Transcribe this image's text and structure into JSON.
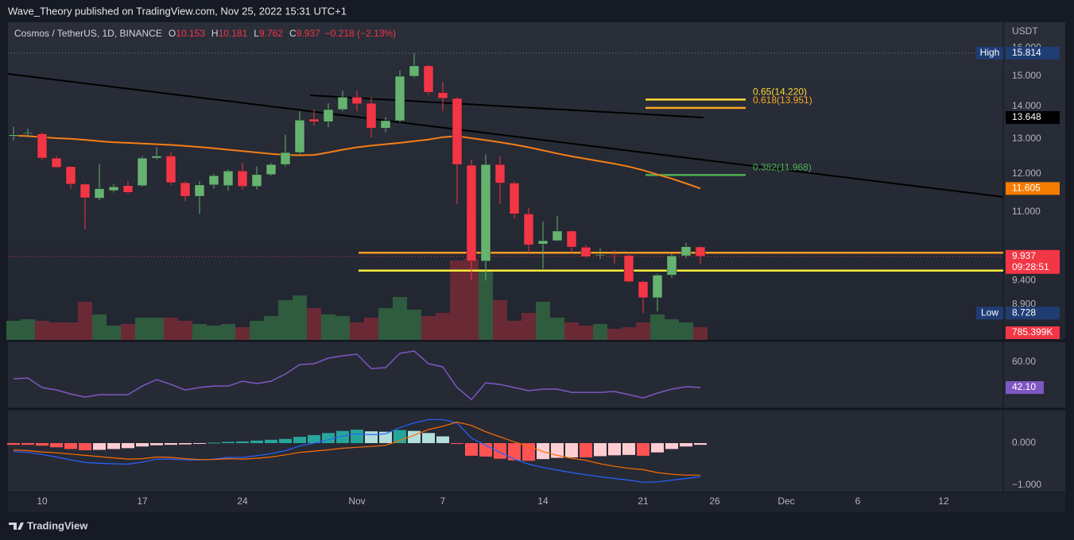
{
  "header": {
    "publisher": "Wave_Theory published on TradingView.com, Nov 25, 2022 15:31 UTC+1",
    "footer": "TradingView"
  },
  "chart_data": {
    "type": "candlestick",
    "title": "Cosmos / TetherUS, 1D, BINANCE",
    "ohlc_labels": [
      "O",
      "H",
      "L",
      "C"
    ],
    "change": "−0.218 (−2.13%)",
    "currency": "USDT",
    "categories": [
      null,
      null,
      "10",
      null,
      null,
      null,
      null,
      null,
      null,
      "17",
      null,
      null,
      null,
      null,
      null,
      null,
      "24",
      null,
      null,
      null,
      null,
      null,
      null,
      null,
      "Nov",
      null,
      null,
      null,
      null,
      null,
      "7",
      null,
      null,
      null,
      null,
      null,
      null,
      "14",
      null,
      null,
      null,
      null,
      null,
      null,
      "21",
      null,
      null,
      null,
      null,
      "26",
      null,
      null,
      null,
      null,
      "Dec",
      null,
      null,
      null,
      null,
      "6",
      null,
      null,
      null,
      null,
      null,
      "12",
      null,
      null,
      null,
      null
    ],
    "open": [
      13.08,
      13.15,
      13.15,
      12.44,
      12.2,
      11.72,
      11.35,
      11.55,
      11.68,
      11.68,
      12.44,
      12.5,
      11.76,
      11.4,
      11.7,
      11.68,
      12.08,
      11.66,
      11.98,
      12.26,
      12.6,
      13.6,
      13.52,
      13.9,
      14.3,
      14.1,
      13.32,
      13.55,
      15.0,
      15.36,
      14.45,
      14.26,
      12.24,
      9.83,
      12.26,
      11.75,
      10.95,
      10.22,
      10.3,
      10.53,
      10.15,
      9.95,
      9.96,
      9.96,
      9.38,
      9.04,
      9.52,
      9.95,
      10.153,
      null,
      null,
      null,
      null,
      null,
      null,
      null,
      null,
      null,
      null,
      null,
      null,
      null,
      null,
      null,
      null,
      null,
      null,
      null,
      null,
      null
    ],
    "high": [
      13.36,
      13.3,
      13.2,
      12.5,
      12.22,
      11.75,
      12.28,
      11.72,
      11.8,
      12.5,
      12.75,
      12.6,
      11.8,
      11.8,
      12.0,
      12.12,
      12.3,
      12.2,
      12.3,
      13.12,
      13.85,
      13.9,
      14.1,
      14.52,
      14.5,
      14.3,
      13.65,
      15.2,
      15.814,
      15.4,
      14.8,
      14.3,
      12.4,
      12.55,
      12.5,
      11.8,
      11.1,
      10.76,
      10.9,
      10.55,
      10.2,
      10.12,
      10.08,
      10.04,
      9.4,
      9.55,
      10.0,
      10.25,
      10.181,
      null,
      null,
      null,
      null,
      null,
      null,
      null,
      null,
      null,
      null,
      null,
      null,
      null,
      null,
      null,
      null,
      null,
      null,
      null,
      null,
      null
    ],
    "low": [
      12.95,
      13.05,
      12.38,
      12.15,
      11.6,
      10.57,
      11.3,
      11.5,
      11.45,
      11.65,
      12.4,
      11.7,
      11.28,
      10.95,
      11.6,
      11.55,
      11.57,
      11.58,
      11.95,
      12.2,
      12.55,
      13.4,
      13.35,
      13.85,
      13.85,
      13.04,
      13.2,
      13.5,
      14.95,
      14.36,
      13.85,
      11.2,
      9.42,
      9.4,
      11.2,
      10.84,
      10.01,
      9.66,
      10.3,
      10.01,
      9.9,
      9.88,
      9.78,
      9.36,
      8.728,
      8.76,
      9.46,
      9.9,
      9.762,
      null,
      null,
      null,
      null,
      null,
      null,
      null,
      null,
      null,
      null,
      null,
      null,
      null,
      null,
      null,
      null,
      null,
      null,
      null,
      null,
      null
    ],
    "close": [
      13.12,
      13.18,
      12.44,
      12.18,
      11.72,
      11.36,
      11.6,
      11.65,
      11.5,
      12.44,
      12.5,
      11.76,
      11.4,
      11.7,
      11.95,
      12.08,
      11.66,
      11.98,
      12.26,
      12.6,
      13.57,
      13.52,
      13.9,
      14.3,
      14.08,
      13.32,
      13.55,
      15.0,
      15.36,
      14.46,
      14.26,
      12.26,
      9.83,
      12.26,
      11.75,
      10.95,
      10.2,
      10.3,
      10.53,
      10.15,
      9.93,
      9.97,
      9.95,
      9.38,
      9.04,
      9.52,
      9.95,
      10.16,
      9.937,
      null,
      null,
      null,
      null,
      null,
      null,
      null,
      null,
      null,
      null,
      null,
      null,
      null,
      null,
      null,
      null,
      null,
      null,
      null,
      null,
      null
    ],
    "up_color": "#66b36f",
    "down_color": "#f23645",
    "log_scale": true,
    "ylim": [
      8.21,
      16.97
    ],
    "yticks": [
      {
        "value": 16,
        "label": "16.000"
      },
      {
        "value": 15,
        "label": "15.000"
      },
      {
        "value": 14,
        "label": "14.000"
      },
      {
        "value": 13,
        "label": "13.000"
      },
      {
        "value": 12,
        "label": "12.000"
      },
      {
        "value": 11,
        "label": "11.000"
      },
      {
        "value": 9.4,
        "label": "9.400"
      },
      {
        "value": 8.9,
        "label": "8.900"
      }
    ],
    "volume": {
      "values": [
        1176000,
        1274000,
        1176000,
        1078000,
        1078000,
        2352000,
        1568000,
        882000,
        980000,
        1372000,
        1372000,
        1372000,
        1176000,
        980000,
        882000,
        980000,
        784000,
        1176000,
        1470000,
        2450000,
        2744000,
        1960000,
        1568000,
        1470000,
        1078000,
        1372000,
        1960000,
        2646000,
        1862000,
        1470000,
        1666000,
        4900000,
        4998000,
        4214000,
        2450000,
        1176000,
        1666000,
        2352000,
        1372000,
        1078000,
        882000,
        980000,
        686000,
        784000,
        1078000,
        1568000,
        1274000,
        1078000,
        785399,
        null,
        null,
        null,
        null,
        null,
        null,
        null,
        null,
        null,
        null,
        null,
        null,
        null,
        null,
        null,
        null,
        null,
        null,
        null,
        null,
        null
      ],
      "up_color": "#2f5b3e",
      "down_color": "#6a2a35",
      "last_label": "785.399K",
      "label_color": "#f23645"
    },
    "moving_average": {
      "color": "#f57f17",
      "values": [
        13.1,
        13.08,
        13.05,
        13.02,
        13.0,
        12.97,
        12.93,
        12.9,
        12.88,
        12.86,
        12.84,
        12.82,
        12.79,
        12.76,
        12.72,
        12.68,
        12.64,
        12.6,
        12.56,
        12.53,
        12.52,
        12.53,
        12.6,
        12.68,
        12.75,
        12.8,
        12.84,
        12.88,
        12.93,
        12.98,
        13.05,
        13.08,
        13.02,
        12.96,
        12.9,
        12.83,
        12.75,
        12.66,
        12.57,
        12.49,
        12.42,
        12.35,
        12.28,
        12.2,
        12.1,
        11.98,
        11.87,
        11.74,
        11.605,
        null,
        null,
        null,
        null,
        null,
        null,
        null,
        null,
        null,
        null,
        null,
        null,
        null,
        null,
        null,
        null,
        null,
        null,
        null,
        null,
        null
      ]
    },
    "price_badges": [
      {
        "name": "High",
        "value": 15.814,
        "color": "#1e3d73",
        "guide": true
      },
      {
        "value": 13.648,
        "color": "#000000"
      },
      {
        "value": 11.605,
        "color": "#f57c00"
      },
      {
        "value": 9.937,
        "color": "#f23645",
        "countdown": "09:28:51",
        "guide": true
      },
      {
        "name": "Low",
        "value": 8.728,
        "color": "#1e3d73"
      }
    ],
    "fib_levels": [
      {
        "label": "0.65(14.220)",
        "value": 14.22,
        "color": "#fdd835"
      },
      {
        "label": "0.618(13.951)",
        "value": 13.951,
        "color": "#f9a825"
      },
      {
        "label": "0.382(11.968)",
        "value": 11.968,
        "color": "#4caf50"
      }
    ],
    "levels": [
      {
        "value": 10.02,
        "color": "#f59a23"
      },
      {
        "value": 9.62,
        "color": "#ffeb3b"
      }
    ],
    "rsi": {
      "color": "#7e57c2",
      "ylim": [
        28.7,
        71.2
      ],
      "yticks": [
        {
          "value": 60,
          "label": "60.00"
        }
      ],
      "last_label": "42.10",
      "values": [
        48.3,
        48.8,
        42.1,
        40.4,
        37.6,
        35.4,
        37.1,
        37.1,
        37.1,
        43.2,
        47.7,
        44.3,
        40.4,
        42.1,
        43.2,
        43.2,
        46.6,
        44.9,
        46.6,
        51.6,
        58.3,
        58.9,
        62.8,
        64.5,
        65.6,
        55.5,
        56.1,
        66.2,
        67.8,
        58.9,
        56.6,
        42.1,
        33.7,
        45.5,
        44.3,
        42.1,
        39.9,
        41.0,
        41.0,
        38.7,
        38.7,
        38.7,
        39.3,
        37.1,
        34.8,
        38.2,
        41.0,
        42.7,
        42.1,
        null,
        null,
        null,
        null,
        null,
        null,
        null,
        null,
        null,
        null,
        null,
        null,
        null,
        null,
        null,
        null,
        null,
        null,
        null,
        null,
        null
      ]
    },
    "macd": {
      "ylim": [
        -1.132,
        0.717
      ],
      "yticks": [
        {
          "value": 0,
          "label": "0.000"
        },
        {
          "value": -1,
          "label": "−1.000"
        }
      ],
      "colors": {
        "rise_up": "#26a69a",
        "fall_up": "#b2dfdb",
        "fall_down": "#ff5252",
        "rise_down": "#ffcdd2"
      },
      "macd_color": "#2962ff",
      "signal_color": "#ff6d00",
      "histogram": [
        -0.04,
        -0.04,
        -0.06,
        -0.1,
        -0.14,
        -0.17,
        -0.16,
        -0.14,
        -0.12,
        -0.08,
        -0.05,
        -0.04,
        -0.03,
        -0.01,
        0.01,
        0.03,
        0.04,
        0.06,
        0.08,
        0.1,
        0.15,
        0.19,
        0.24,
        0.29,
        0.32,
        0.28,
        0.27,
        0.31,
        0.29,
        0.24,
        0.16,
        -0.02,
        -0.3,
        -0.32,
        -0.37,
        -0.41,
        -0.42,
        -0.38,
        -0.35,
        -0.34,
        -0.34,
        -0.31,
        -0.29,
        -0.28,
        -0.3,
        -0.22,
        -0.14,
        -0.08,
        -0.04,
        null,
        null,
        null,
        null,
        null,
        null,
        null,
        null,
        null,
        null,
        null,
        null,
        null,
        null,
        null,
        null,
        null,
        null,
        null,
        null,
        null
      ],
      "macd": [
        -0.2,
        -0.22,
        -0.27,
        -0.33,
        -0.4,
        -0.46,
        -0.48,
        -0.49,
        -0.5,
        -0.45,
        -0.38,
        -0.38,
        -0.4,
        -0.4,
        -0.38,
        -0.34,
        -0.34,
        -0.3,
        -0.25,
        -0.18,
        -0.07,
        0.0,
        0.08,
        0.17,
        0.22,
        0.2,
        0.22,
        0.37,
        0.48,
        0.56,
        0.56,
        0.48,
        0.12,
        -0.05,
        -0.22,
        -0.38,
        -0.5,
        -0.58,
        -0.64,
        -0.7,
        -0.75,
        -0.8,
        -0.84,
        -0.88,
        -0.93,
        -0.92,
        -0.88,
        -0.84,
        -0.8,
        null,
        null,
        null,
        null,
        null,
        null,
        null,
        null,
        null,
        null,
        null,
        null,
        null,
        null,
        null,
        null,
        null,
        null,
        null,
        null,
        null
      ],
      "signal": [
        -0.16,
        -0.18,
        -0.21,
        -0.23,
        -0.26,
        -0.29,
        -0.32,
        -0.35,
        -0.38,
        -0.37,
        -0.33,
        -0.34,
        -0.37,
        -0.39,
        -0.39,
        -0.37,
        -0.38,
        -0.36,
        -0.33,
        -0.28,
        -0.22,
        -0.19,
        -0.16,
        -0.12,
        -0.1,
        -0.08,
        -0.05,
        0.06,
        0.19,
        0.32,
        0.4,
        0.5,
        0.42,
        0.27,
        0.15,
        0.03,
        -0.08,
        -0.2,
        -0.29,
        -0.36,
        -0.41,
        -0.49,
        -0.55,
        -0.6,
        -0.63,
        -0.7,
        -0.74,
        -0.76,
        -0.76,
        null,
        null,
        null,
        null,
        null,
        null,
        null,
        null,
        null,
        null,
        null,
        null,
        null,
        null,
        null,
        null,
        null,
        null,
        null,
        null,
        null
      ]
    }
  }
}
